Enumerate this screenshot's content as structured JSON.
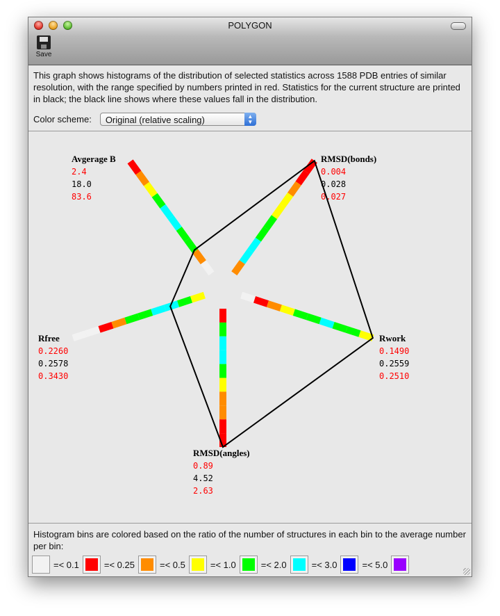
{
  "window": {
    "title": "POLYGON"
  },
  "toolbar": {
    "save_label": "Save"
  },
  "description": "This graph shows histograms of the distribution of selected statistics across 1588 PDB entries of similar resolution, with the range specified by numbers printed in red.  Statistics for the current structure are printed in black; the black line shows where these values fall in the distribution.",
  "color_scheme": {
    "label": "Color scheme:",
    "selected": "Original (relative scaling)"
  },
  "legend": {
    "text": "Histogram bins are colored based on the ratio of the number of structures in each bin to the average number per bin:",
    "items": [
      {
        "color": "#f2f2f2",
        "label": "=< 0.1"
      },
      {
        "color": "#ff0000",
        "label": "=< 0.25"
      },
      {
        "color": "#ff8c00",
        "label": "=< 0.5"
      },
      {
        "color": "#ffff00",
        "label": "=< 1.0"
      },
      {
        "color": "#00ff00",
        "label": "=< 2.0"
      },
      {
        "color": "#00ffff",
        "label": "=< 3.0"
      },
      {
        "color": "#0000ff",
        "label": "=< 5.0"
      },
      {
        "color": "#9900ff",
        "label": ""
      }
    ]
  },
  "chart_data": {
    "type": "radar-histogram",
    "axes": [
      {
        "name": "Avgerage B",
        "min": "2.4",
        "value": "18.0",
        "max": "83.6",
        "position_fraction": 0.21,
        "bins": [
          "#f2f2f2",
          "#ff8c00",
          "#00ff00",
          "#00ff00",
          "#00ffff",
          "#00ffff",
          "#00ff00",
          "#ffff00",
          "#ff8c00",
          "#ff0000"
        ]
      },
      {
        "name": "RMSD(bonds)",
        "min": "0.004",
        "value": "0.028",
        "max": "0.027",
        "position_fraction": 1.0,
        "bins": [
          "#ff8c00",
          "#00ffff",
          "#00ffff",
          "#00ff00",
          "#00ff00",
          "#ffff00",
          "#ffff00",
          "#ff8c00",
          "#ff0000",
          "#ff0000"
        ]
      },
      {
        "name": "Rwork",
        "min": "0.1490",
        "value": "0.2559",
        "max": "0.2510",
        "position_fraction": 1.0,
        "bins": [
          "#f2f2f2",
          "#ff0000",
          "#ff8c00",
          "#ffff00",
          "#00ff00",
          "#00ff00",
          "#00ffff",
          "#00ff00",
          "#00ff00",
          "#ffff00"
        ]
      },
      {
        "name": "RMSD(angles)",
        "min": "0.89",
        "value": "4.52",
        "max": "2.63",
        "position_fraction": 1.0,
        "bins": [
          "#ff0000",
          "#00ff00",
          "#00ffff",
          "#00ffff",
          "#00ff00",
          "#ffff00",
          "#ff8c00",
          "#ff8c00",
          "#ff0000",
          "#ff0000"
        ]
      },
      {
        "name": "Rfree",
        "min": "0.2260",
        "value": "0.2578",
        "max": "0.3430",
        "position_fraction": 0.26,
        "bins": [
          "#ffff00",
          "#00ff00",
          "#00ffff",
          "#00ffff",
          "#00ff00",
          "#00ff00",
          "#ff8c00",
          "#ff0000",
          "#f2f2f2",
          "#f2f2f2"
        ]
      }
    ]
  }
}
